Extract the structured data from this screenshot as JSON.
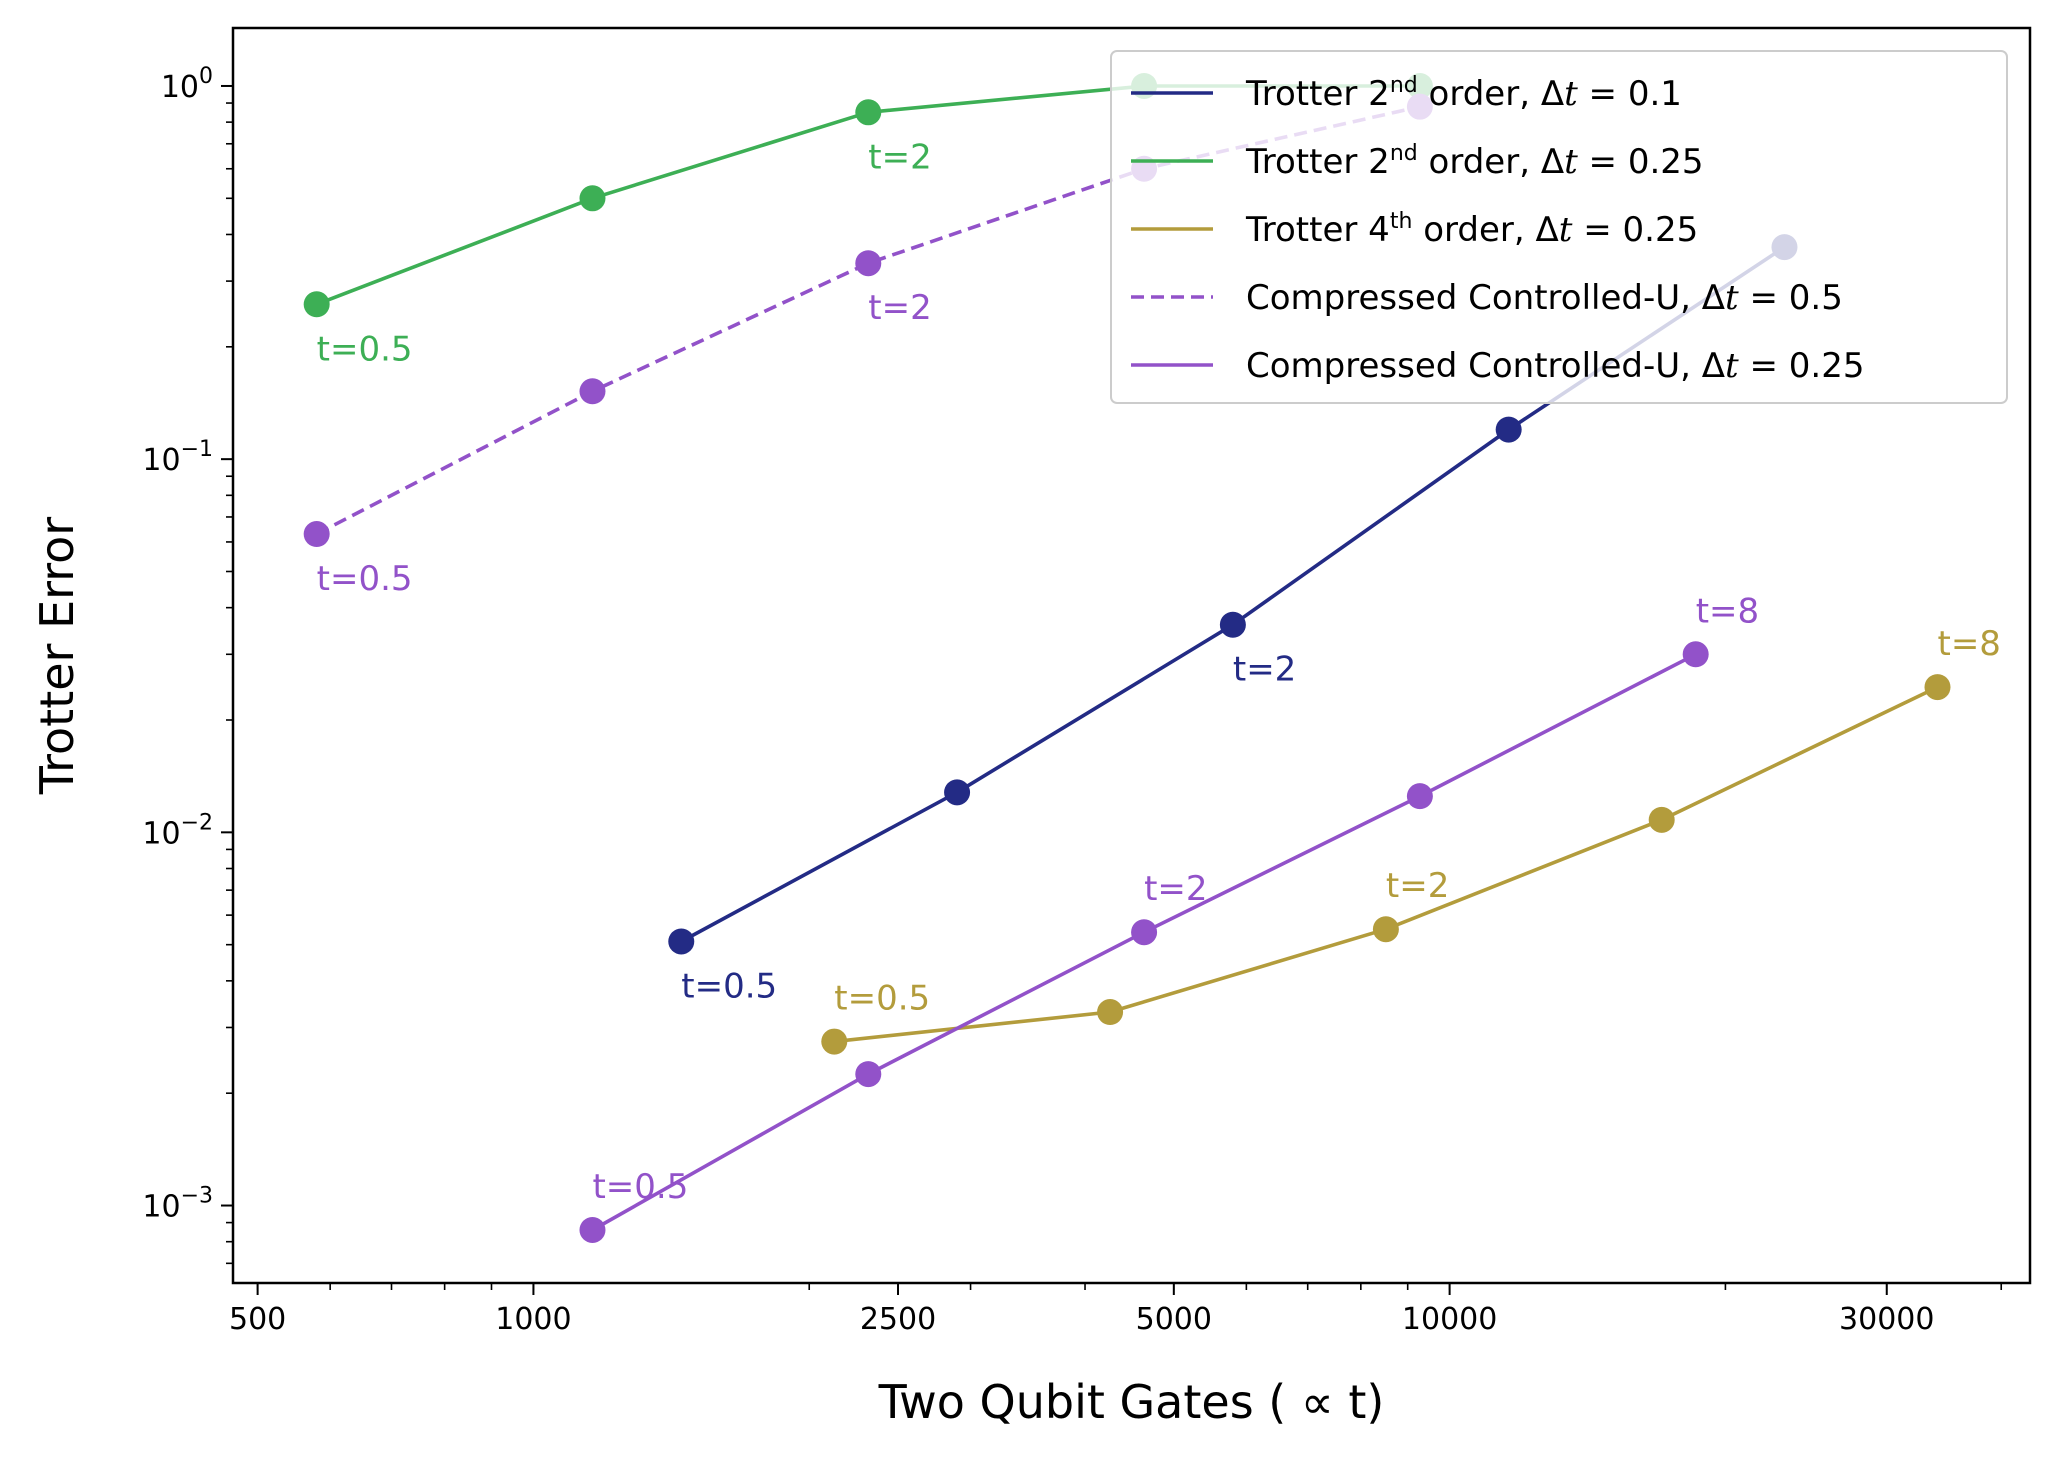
{
  "chart_data": {
    "type": "line",
    "xlabel": "Two Qubit Gates ( ∝  t)",
    "ylabel": "Trotter Error",
    "xscale": "log",
    "yscale": "log",
    "xlim": [
      470,
      43000
    ],
    "ylim": [
      0.00062,
      1.43
    ],
    "x_ticks": [
      {
        "value": 500,
        "label": "500"
      },
      {
        "value": 1000,
        "label": "1000"
      },
      {
        "value": 2500,
        "label": "2500"
      },
      {
        "value": 5000,
        "label": "5000"
      },
      {
        "value": 10000,
        "label": "10000"
      },
      {
        "value": 30000,
        "label": "30000"
      }
    ],
    "y_ticks": [
      {
        "value": 1,
        "base": "10",
        "exp": "0"
      },
      {
        "value": 0.1,
        "base": "10",
        "exp": "−1"
      },
      {
        "value": 0.01,
        "base": "10",
        "exp": "−2"
      },
      {
        "value": 0.001,
        "base": "10",
        "exp": "−3"
      }
    ],
    "legend_position": "top-right",
    "series": [
      {
        "key": "trotter2-dt01",
        "legend": {
          "pre": "Trotter 2",
          "sup": "nd",
          "post": " order, Δ",
          "var": "t",
          "eq": " = 0.1"
        },
        "color": "#232b85",
        "dashed": false,
        "x": [
          1450,
          2900,
          5800,
          11600,
          23200
        ],
        "y": [
          0.0051,
          0.0128,
          0.036,
          0.12,
          0.37
        ],
        "annotations": [
          {
            "text": "t=0.5",
            "point": 0,
            "pos": "below"
          },
          {
            "text": "t=2",
            "point": 2,
            "pos": "below"
          }
        ]
      },
      {
        "key": "trotter2-dt025",
        "legend": {
          "pre": "Trotter 2",
          "sup": "nd",
          "post": " order, Δ",
          "var": "t",
          "eq": " = 0.25"
        },
        "color": "#3daf55",
        "dashed": false,
        "x": [
          580,
          1160,
          2320,
          4640,
          9280
        ],
        "y": [
          0.26,
          0.5,
          0.85,
          1.0,
          1.0
        ],
        "annotations": [
          {
            "text": "t=0.5",
            "point": 0,
            "pos": "below"
          },
          {
            "text": "t=2",
            "point": 2,
            "pos": "below"
          }
        ]
      },
      {
        "key": "trotter4-dt025",
        "legend": {
          "pre": "Trotter 4",
          "sup": "th",
          "post": " order, Δ",
          "var": "t",
          "eq": " = 0.25"
        },
        "color": "#b39c3c",
        "dashed": false,
        "x": [
          2130,
          4260,
          8520,
          17040,
          34080
        ],
        "y": [
          0.00275,
          0.0033,
          0.0055,
          0.0108,
          0.0245
        ],
        "annotations": [
          {
            "text": "t=0.5",
            "point": 0,
            "pos": "above"
          },
          {
            "text": "t=2",
            "point": 2,
            "pos": "above"
          },
          {
            "text": "t=8",
            "point": 4,
            "pos": "above"
          }
        ]
      },
      {
        "key": "ccu-dt05",
        "legend": {
          "pre": "Compressed Controlled-U, Δ",
          "sup": "",
          "post": "",
          "var": "t",
          "eq": " = 0.5"
        },
        "color": "#9252c9",
        "dashed": true,
        "x": [
          580,
          1160,
          2320,
          4640,
          9280
        ],
        "y": [
          0.063,
          0.152,
          0.335,
          0.6,
          0.88
        ],
        "annotations": [
          {
            "text": "t=0.5",
            "point": 0,
            "pos": "below"
          },
          {
            "text": "t=2",
            "point": 2,
            "pos": "below"
          }
        ]
      },
      {
        "key": "ccu-dt025",
        "legend": {
          "pre": "Compressed Controlled-U, Δ",
          "sup": "",
          "post": "",
          "var": "t",
          "eq": " = 0.25"
        },
        "color": "#9252c9",
        "dashed": false,
        "x": [
          1160,
          2320,
          4640,
          9280,
          18560
        ],
        "y": [
          0.00086,
          0.00225,
          0.0054,
          0.0125,
          0.03
        ],
        "annotations": [
          {
            "text": "t=0.5",
            "point": 0,
            "pos": "above"
          },
          {
            "text": "t=2",
            "point": 2,
            "pos": "above"
          },
          {
            "text": "t=8",
            "point": 4,
            "pos": "above"
          }
        ]
      }
    ]
  }
}
